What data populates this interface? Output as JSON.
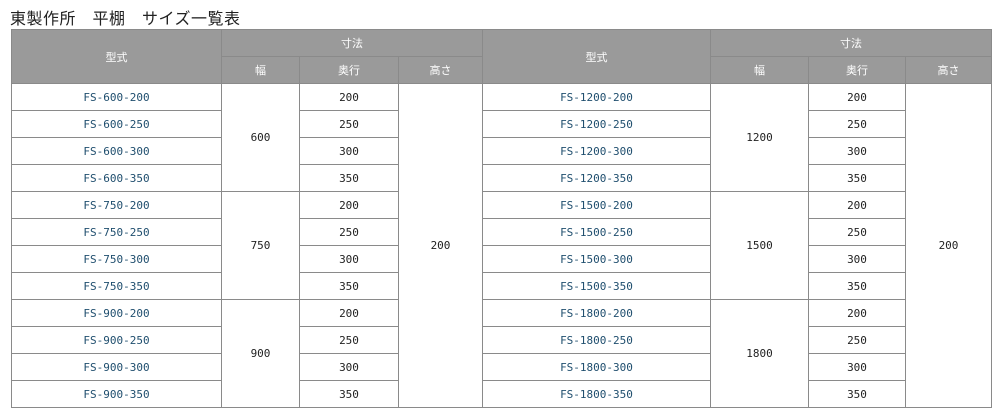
{
  "title": "東製作所　平棚　サイズ一覧表",
  "headers": {
    "model": "型式",
    "dimensions": "寸法",
    "width": "幅",
    "depth": "奥行",
    "height": "高さ"
  },
  "colors": {
    "header_bg": "#9a9a9a",
    "model_text": "#1f4e6e"
  },
  "sides": [
    {
      "height": "200",
      "groups": [
        {
          "width": "600",
          "rows": [
            {
              "model": "FS-600-200",
              "depth": "200"
            },
            {
              "model": "FS-600-250",
              "depth": "250"
            },
            {
              "model": "FS-600-300",
              "depth": "300"
            },
            {
              "model": "FS-600-350",
              "depth": "350"
            }
          ]
        },
        {
          "width": "750",
          "rows": [
            {
              "model": "FS-750-200",
              "depth": "200"
            },
            {
              "model": "FS-750-250",
              "depth": "250"
            },
            {
              "model": "FS-750-300",
              "depth": "300"
            },
            {
              "model": "FS-750-350",
              "depth": "350"
            }
          ]
        },
        {
          "width": "900",
          "rows": [
            {
              "model": "FS-900-200",
              "depth": "200"
            },
            {
              "model": "FS-900-250",
              "depth": "250"
            },
            {
              "model": "FS-900-300",
              "depth": "300"
            },
            {
              "model": "FS-900-350",
              "depth": "350"
            }
          ]
        }
      ]
    },
    {
      "height": "200",
      "groups": [
        {
          "width": "1200",
          "rows": [
            {
              "model": "FS-1200-200",
              "depth": "200"
            },
            {
              "model": "FS-1200-250",
              "depth": "250"
            },
            {
              "model": "FS-1200-300",
              "depth": "300"
            },
            {
              "model": "FS-1200-350",
              "depth": "350"
            }
          ]
        },
        {
          "width": "1500",
          "rows": [
            {
              "model": "FS-1500-200",
              "depth": "200"
            },
            {
              "model": "FS-1500-250",
              "depth": "250"
            },
            {
              "model": "FS-1500-300",
              "depth": "300"
            },
            {
              "model": "FS-1500-350",
              "depth": "350"
            }
          ]
        },
        {
          "width": "1800",
          "rows": [
            {
              "model": "FS-1800-200",
              "depth": "200"
            },
            {
              "model": "FS-1800-250",
              "depth": "250"
            },
            {
              "model": "FS-1800-300",
              "depth": "300"
            },
            {
              "model": "FS-1800-350",
              "depth": "350"
            }
          ]
        }
      ]
    }
  ]
}
